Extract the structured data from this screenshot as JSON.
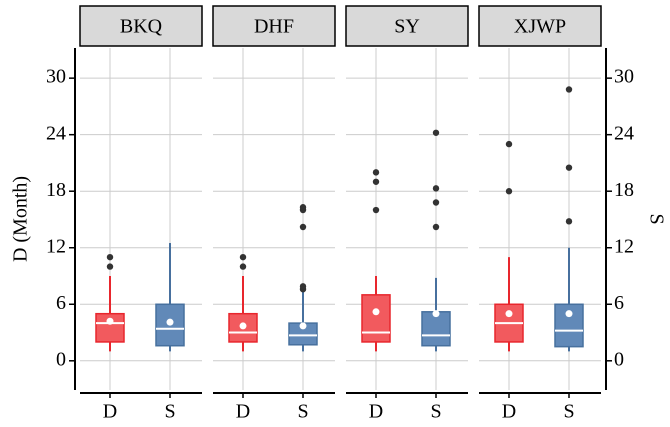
{
  "chart_data": {
    "type": "box",
    "y_label": "D (Month)",
    "y2_label": "S",
    "ylim": [
      -3.1,
      33.2
    ],
    "yticks": [
      0,
      6,
      12,
      18,
      24,
      30
    ],
    "y2lim": [
      -3.1,
      33.2
    ],
    "y2ticks": [
      0,
      6,
      12,
      18,
      24,
      30
    ],
    "categories": [
      "D",
      "S"
    ],
    "colors": [
      "#e8262d",
      "#47709e"
    ],
    "grid": true,
    "facets": [
      {
        "title": "BKQ",
        "boxes": [
          {
            "min": 1,
            "q1": 2,
            "median": 4,
            "q3": 5,
            "max": 9,
            "mean": 4.2,
            "outliers": [
              10,
              11
            ]
          },
          {
            "min": 1,
            "q1": 1.6,
            "median": 3.4,
            "q3": 6,
            "max": 12.5,
            "mean": 4.1,
            "outliers": []
          }
        ]
      },
      {
        "title": "DHF",
        "boxes": [
          {
            "min": 1,
            "q1": 2,
            "median": 3,
            "q3": 5,
            "max": 9,
            "mean": 3.7,
            "outliers": [
              10,
              11
            ]
          },
          {
            "min": 1,
            "q1": 1.7,
            "median": 2.7,
            "q3": 4,
            "max": 7.5,
            "mean": 3.7,
            "outliers": [
              7.6,
              7.9,
              14.2,
              16,
              16.3
            ]
          }
        ]
      },
      {
        "title": "SY",
        "boxes": [
          {
            "min": 1,
            "q1": 2,
            "median": 3,
            "q3": 7,
            "max": 9,
            "mean": 5.2,
            "outliers": [
              16,
              19,
              20
            ]
          },
          {
            "min": 1,
            "q1": 1.6,
            "median": 2.7,
            "q3": 5.2,
            "max": 8.8,
            "mean": 5,
            "outliers": [
              14.2,
              16.8,
              18.3,
              24.2
            ]
          }
        ]
      },
      {
        "title": "XJWP",
        "boxes": [
          {
            "min": 1,
            "q1": 2,
            "median": 4,
            "q3": 6,
            "max": 11,
            "mean": 5,
            "outliers": [
              18,
              23
            ]
          },
          {
            "min": 1,
            "q1": 1.5,
            "median": 3.2,
            "q3": 6,
            "max": 12,
            "mean": 5,
            "outliers": [
              14.8,
              20.5,
              28.8
            ]
          }
        ]
      }
    ]
  }
}
